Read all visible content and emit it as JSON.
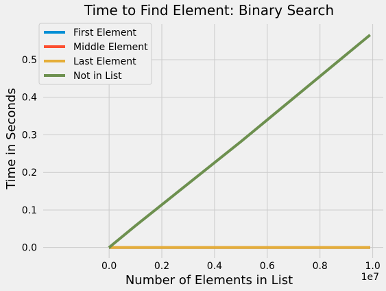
{
  "chart_data": {
    "type": "line",
    "title": "Time to Find Element: Binary Search",
    "xlabel": "Number of Elements in List",
    "ylabel": "Time in Seconds",
    "x_offset_label": "1e7",
    "x": [
      10,
      100,
      1000,
      10000,
      100000,
      1000000,
      5000000,
      9900000
    ],
    "xlim": [
      -2500000,
      10400000
    ],
    "ylim": [
      -0.028,
      0.595
    ],
    "xticks": [
      0,
      2000000,
      4000000,
      6000000,
      8000000,
      10000000
    ],
    "xtick_labels": [
      "0.0",
      "0.2",
      "0.4",
      "0.6",
      "0.8",
      "1.0"
    ],
    "yticks": [
      0.0,
      0.1,
      0.2,
      0.3,
      0.4,
      0.5
    ],
    "ytick_labels": [
      "0.0",
      "0.1",
      "0.2",
      "0.3",
      "0.4",
      "0.5"
    ],
    "grid": true,
    "legend_position": "top-left",
    "series": [
      {
        "name": "First Element",
        "color": "#008fd5",
        "values": [
          0,
          0,
          0,
          0,
          0,
          0,
          0,
          0
        ]
      },
      {
        "name": "Middle Element",
        "color": "#fc4f30",
        "values": [
          0,
          0,
          0,
          0,
          0,
          0,
          0,
          0
        ]
      },
      {
        "name": "Last Element",
        "color": "#e5ae38",
        "values": [
          0,
          0,
          0,
          0,
          0,
          0,
          0,
          0
        ]
      },
      {
        "name": "Not in List",
        "color": "#6d904f",
        "values": [
          0,
          0,
          0.0001,
          0.0006,
          0.006,
          0.058,
          0.282,
          0.566
        ]
      }
    ]
  }
}
